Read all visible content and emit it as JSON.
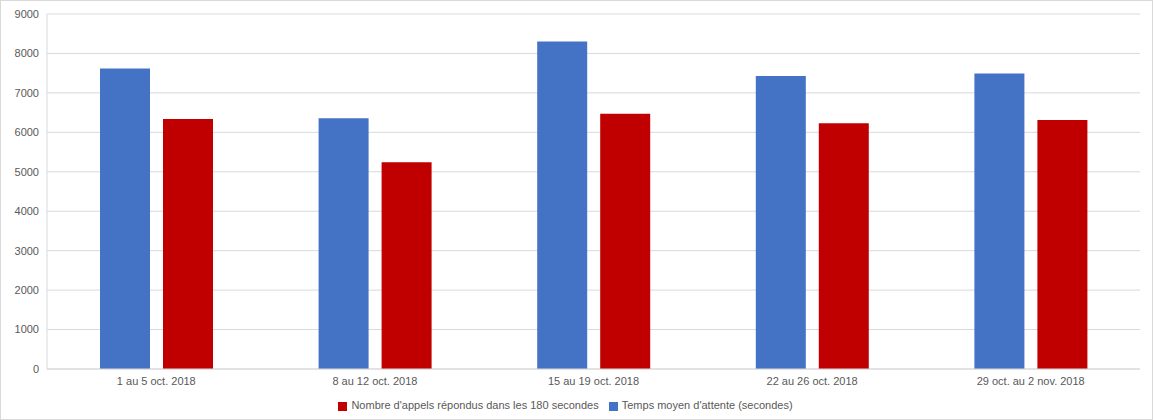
{
  "chart_data": {
    "type": "bar",
    "categories": [
      "1 au 5 oct. 2018",
      "8 au 12 oct. 2018",
      "15 au 19 oct. 2018",
      "22 au 26 oct. 2018",
      "29 oct. au 2 nov. 2018"
    ],
    "series": [
      {
        "name": "Temps moyen d'attente (secondes)",
        "color": "#4472c4",
        "values": [
          7620,
          6360,
          8300,
          7430,
          7490
        ]
      },
      {
        "name": "Nombre d'appels répondus dans les 180 secondes",
        "color": "#c00000",
        "values": [
          6340,
          5240,
          6470,
          6230,
          6310
        ]
      }
    ],
    "ylim": [
      0,
      9000
    ],
    "yticks": [
      0,
      1000,
      2000,
      3000,
      4000,
      5000,
      6000,
      7000,
      8000,
      9000
    ],
    "grid": true,
    "legend": "bottom"
  }
}
